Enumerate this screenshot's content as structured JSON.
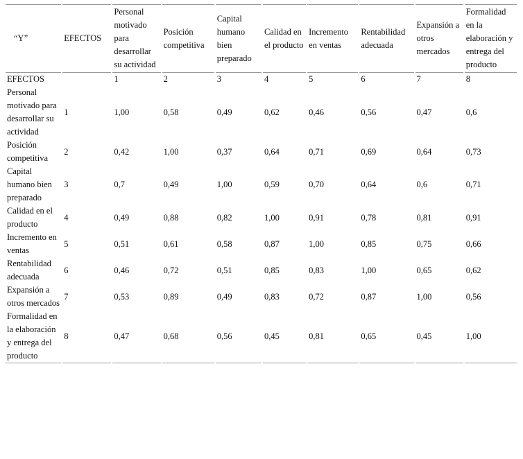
{
  "table": {
    "header": [
      "“Y”",
      "EFECTOS",
      "Personal motivado para desarrollar su actividad",
      "Posición competitiva",
      "Capital humano bien preparado",
      "Calidad en el producto",
      "Incremento en ventas",
      "Rentabilidad adecuada",
      "Expansión a otros mercados",
      "Formalidad en la elaboración y entrega del producto"
    ],
    "rows": [
      [
        "EFECTOS",
        null,
        "1",
        "2",
        "3",
        "4",
        "5",
        "6",
        "7",
        "8"
      ],
      [
        "Personal motivado para desarrollar su actividad",
        "1",
        "1,00",
        "0,58",
        "0,49",
        "0,62",
        "0,46",
        "0,56",
        "0,47",
        "0,6"
      ],
      [
        "Posición competitiva",
        "2",
        "0,42",
        "1,00",
        "0,37",
        "0,64",
        "0,71",
        "0,69",
        "0,64",
        "0,73"
      ],
      [
        "Capital humano bien preparado",
        "3",
        "0,7",
        "0,49",
        "1,00",
        "0,59",
        "0,70",
        "0,64",
        "0,6",
        "0,71"
      ],
      [
        "Calidad en el producto",
        "4",
        "0,49",
        "0,88",
        "0,82",
        "1,00",
        "0,91",
        "0,78",
        "0,81",
        "0,91"
      ],
      [
        "Incremento en ventas",
        "5",
        "0,51",
        "0,61",
        "0,58",
        "0,87",
        "1,00",
        "0,85",
        "0,75",
        "0,66"
      ],
      [
        "Rentabilidad adecuada",
        "6",
        "0,46",
        "0,72",
        "0,51",
        "0,85",
        "0,83",
        "1,00",
        "0,65",
        "0,62"
      ],
      [
        "Expansión a otros mercados",
        "7",
        "0,53",
        "0,89",
        "0,49",
        "0,83",
        "0,72",
        "0,87",
        "1,00",
        "0,56"
      ],
      [
        "Formalidad en la elaboración y entrega del producto",
        "8",
        "0,47",
        "0,68",
        "0,56",
        "0,45",
        "0,81",
        "0,65",
        "0,45",
        "1,00"
      ]
    ]
  }
}
